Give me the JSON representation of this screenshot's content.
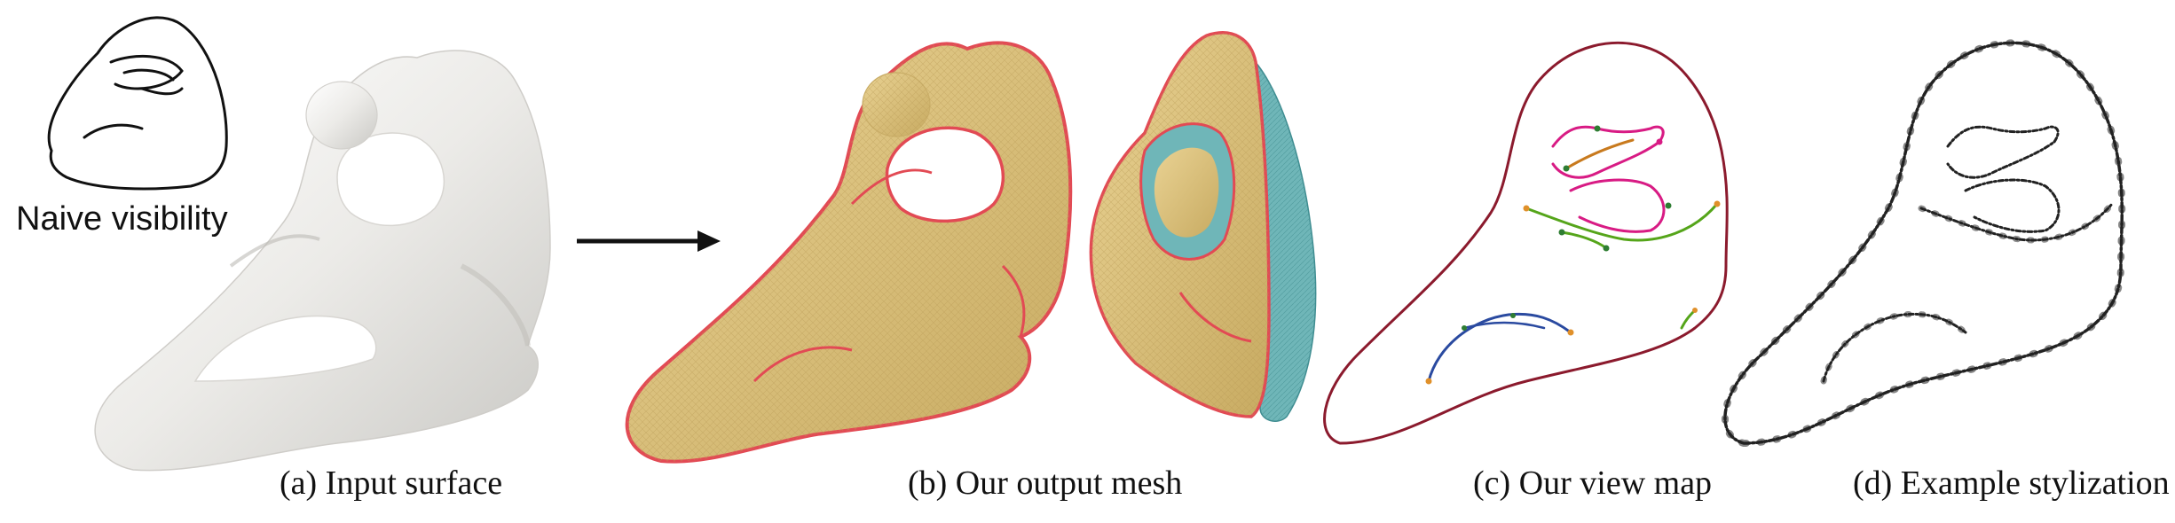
{
  "captions": {
    "a": "(a) Input surface",
    "b": "(b) Our output mesh",
    "c": "(c) Our view map",
    "d": "(d) Example stylization"
  },
  "inset_label": "Naive visibility",
  "colors": {
    "surface": "#e9e8e5",
    "mesh_front": "#dcc27f",
    "mesh_back": "#6fb6b8",
    "silhouette": "#e24a54",
    "viewmap_outline": "#8b1a2d",
    "viewmap_pink": "#d81b84",
    "viewmap_green": "#55a51a",
    "viewmap_blue": "#2a4aa0",
    "viewmap_orange": "#c87a1e",
    "ink": "#111111"
  }
}
